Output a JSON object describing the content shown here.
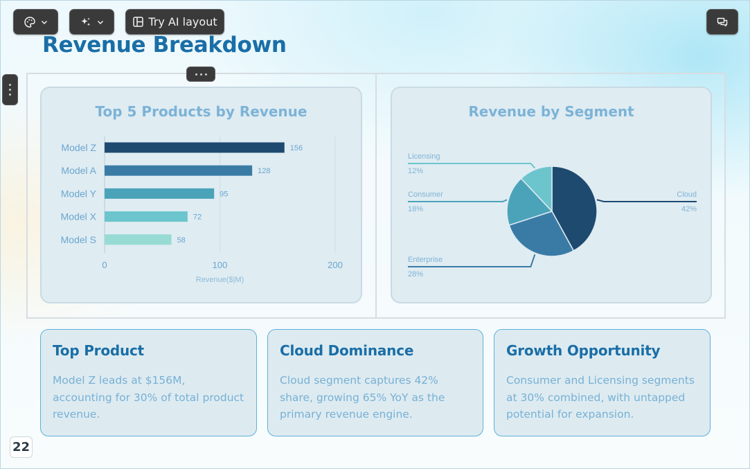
{
  "toolbar": {
    "theme_icon": "palette-icon",
    "ai_icon": "sparkle-icon",
    "try_ai_label": "Try AI layout",
    "comments_icon": "comments-icon"
  },
  "slide": {
    "title": "Revenue Breakdown",
    "page_number": "22"
  },
  "chart_data": [
    {
      "type": "bar",
      "orientation": "horizontal",
      "title": "Top 5 Products by Revenue",
      "categories": [
        "Model Z",
        "Model A",
        "Model Y",
        "Model X",
        "Model S"
      ],
      "values": [
        156,
        128,
        95,
        72,
        58
      ],
      "value_labels": [
        "156",
        "128",
        "95",
        "72",
        "58"
      ],
      "xlabel": "Revenue($|M)",
      "ylabel": "",
      "xlim": [
        0,
        200
      ],
      "xticks": [
        "0",
        "100",
        "200"
      ],
      "colors": [
        "#1f4a70",
        "#3a7ba6",
        "#4aa3b9",
        "#6cc5cd",
        "#97dbd4"
      ],
      "grid": true
    },
    {
      "type": "pie",
      "title": "Revenue by Segment",
      "labels": [
        "Cloud",
        "Enterprise",
        "Consumer",
        "Licensing"
      ],
      "values": [
        42,
        28,
        18,
        12
      ],
      "percent_labels": [
        "42%",
        "28%",
        "18%",
        "12%"
      ],
      "colors": [
        "#1f4a70",
        "#3a7ba6",
        "#4aa3b9",
        "#6cc5cd"
      ]
    }
  ],
  "cards": [
    {
      "title": "Top Product",
      "body": "Model Z leads at $156M, accounting for 30% of total product revenue."
    },
    {
      "title": "Cloud Dominance",
      "body": "Cloud segment captures 42% share, growing 65% YoY as the primary revenue engine."
    },
    {
      "title": "Growth Opportunity",
      "body": "Consumer and Licensing segments at 30% combined, with untapped potential for expansion."
    }
  ]
}
